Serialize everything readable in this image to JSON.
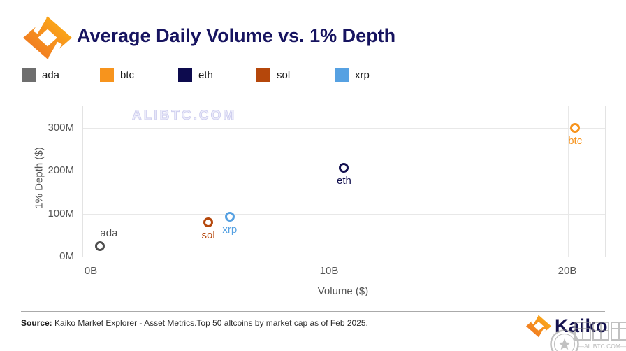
{
  "header": {
    "title": "Average Daily Volume vs. 1% Depth"
  },
  "legend": {
    "items": [
      {
        "label": "ada",
        "color": "#6e6e6e"
      },
      {
        "label": "btc",
        "color": "#f7941d"
      },
      {
        "label": "eth",
        "color": "#0d0b4e"
      },
      {
        "label": "sol",
        "color": "#b5470b"
      },
      {
        "label": "xrp",
        "color": "#56a1e2"
      }
    ]
  },
  "chart_data": {
    "type": "scatter",
    "title": "Average Daily Volume vs. 1% Depth",
    "xlabel": "Volume ($)",
    "ylabel": "1% Depth ($)",
    "x_unit": "billions of dollars",
    "y_unit": "millions of dollars",
    "xlim": [
      -0.35,
      21.6
    ],
    "ylim": [
      0,
      350
    ],
    "grid": true,
    "legend_position": "top",
    "x_ticks": [
      {
        "label": "0B",
        "value": 0
      },
      {
        "label": "10B",
        "value": 10
      },
      {
        "label": "20B",
        "value": 20
      }
    ],
    "y_ticks": [
      {
        "label": "0M",
        "value": 0
      },
      {
        "label": "100M",
        "value": 100
      },
      {
        "label": "200M",
        "value": 200
      },
      {
        "label": "300M",
        "value": 300
      }
    ],
    "points": [
      {
        "name": "ada",
        "x": 0.35,
        "y": 25,
        "color": "#4f4f4f",
        "label_placement": "above"
      },
      {
        "name": "sol",
        "x": 4.9,
        "y": 80,
        "color": "#b5470b",
        "label_placement": "below"
      },
      {
        "name": "xrp",
        "x": 5.8,
        "y": 93,
        "color": "#56a1e2",
        "label_placement": "below"
      },
      {
        "name": "eth",
        "x": 10.6,
        "y": 207,
        "color": "#12104f",
        "label_placement": "below"
      },
      {
        "name": "btc",
        "x": 20.3,
        "y": 300,
        "color": "#f7941d",
        "label_placement": "below"
      }
    ]
  },
  "watermarks": {
    "plot_text": "ALIBTC.COM",
    "stamp_text": "币图网",
    "stamp_caption": "—ALIBTC.COM—"
  },
  "footer": {
    "source_label": "Source:",
    "source_text": " Kaiko Market Explorer - Asset Metrics.Top 50 altcoins by market cap as of Feb 2025.",
    "brand": "Kaiko"
  }
}
